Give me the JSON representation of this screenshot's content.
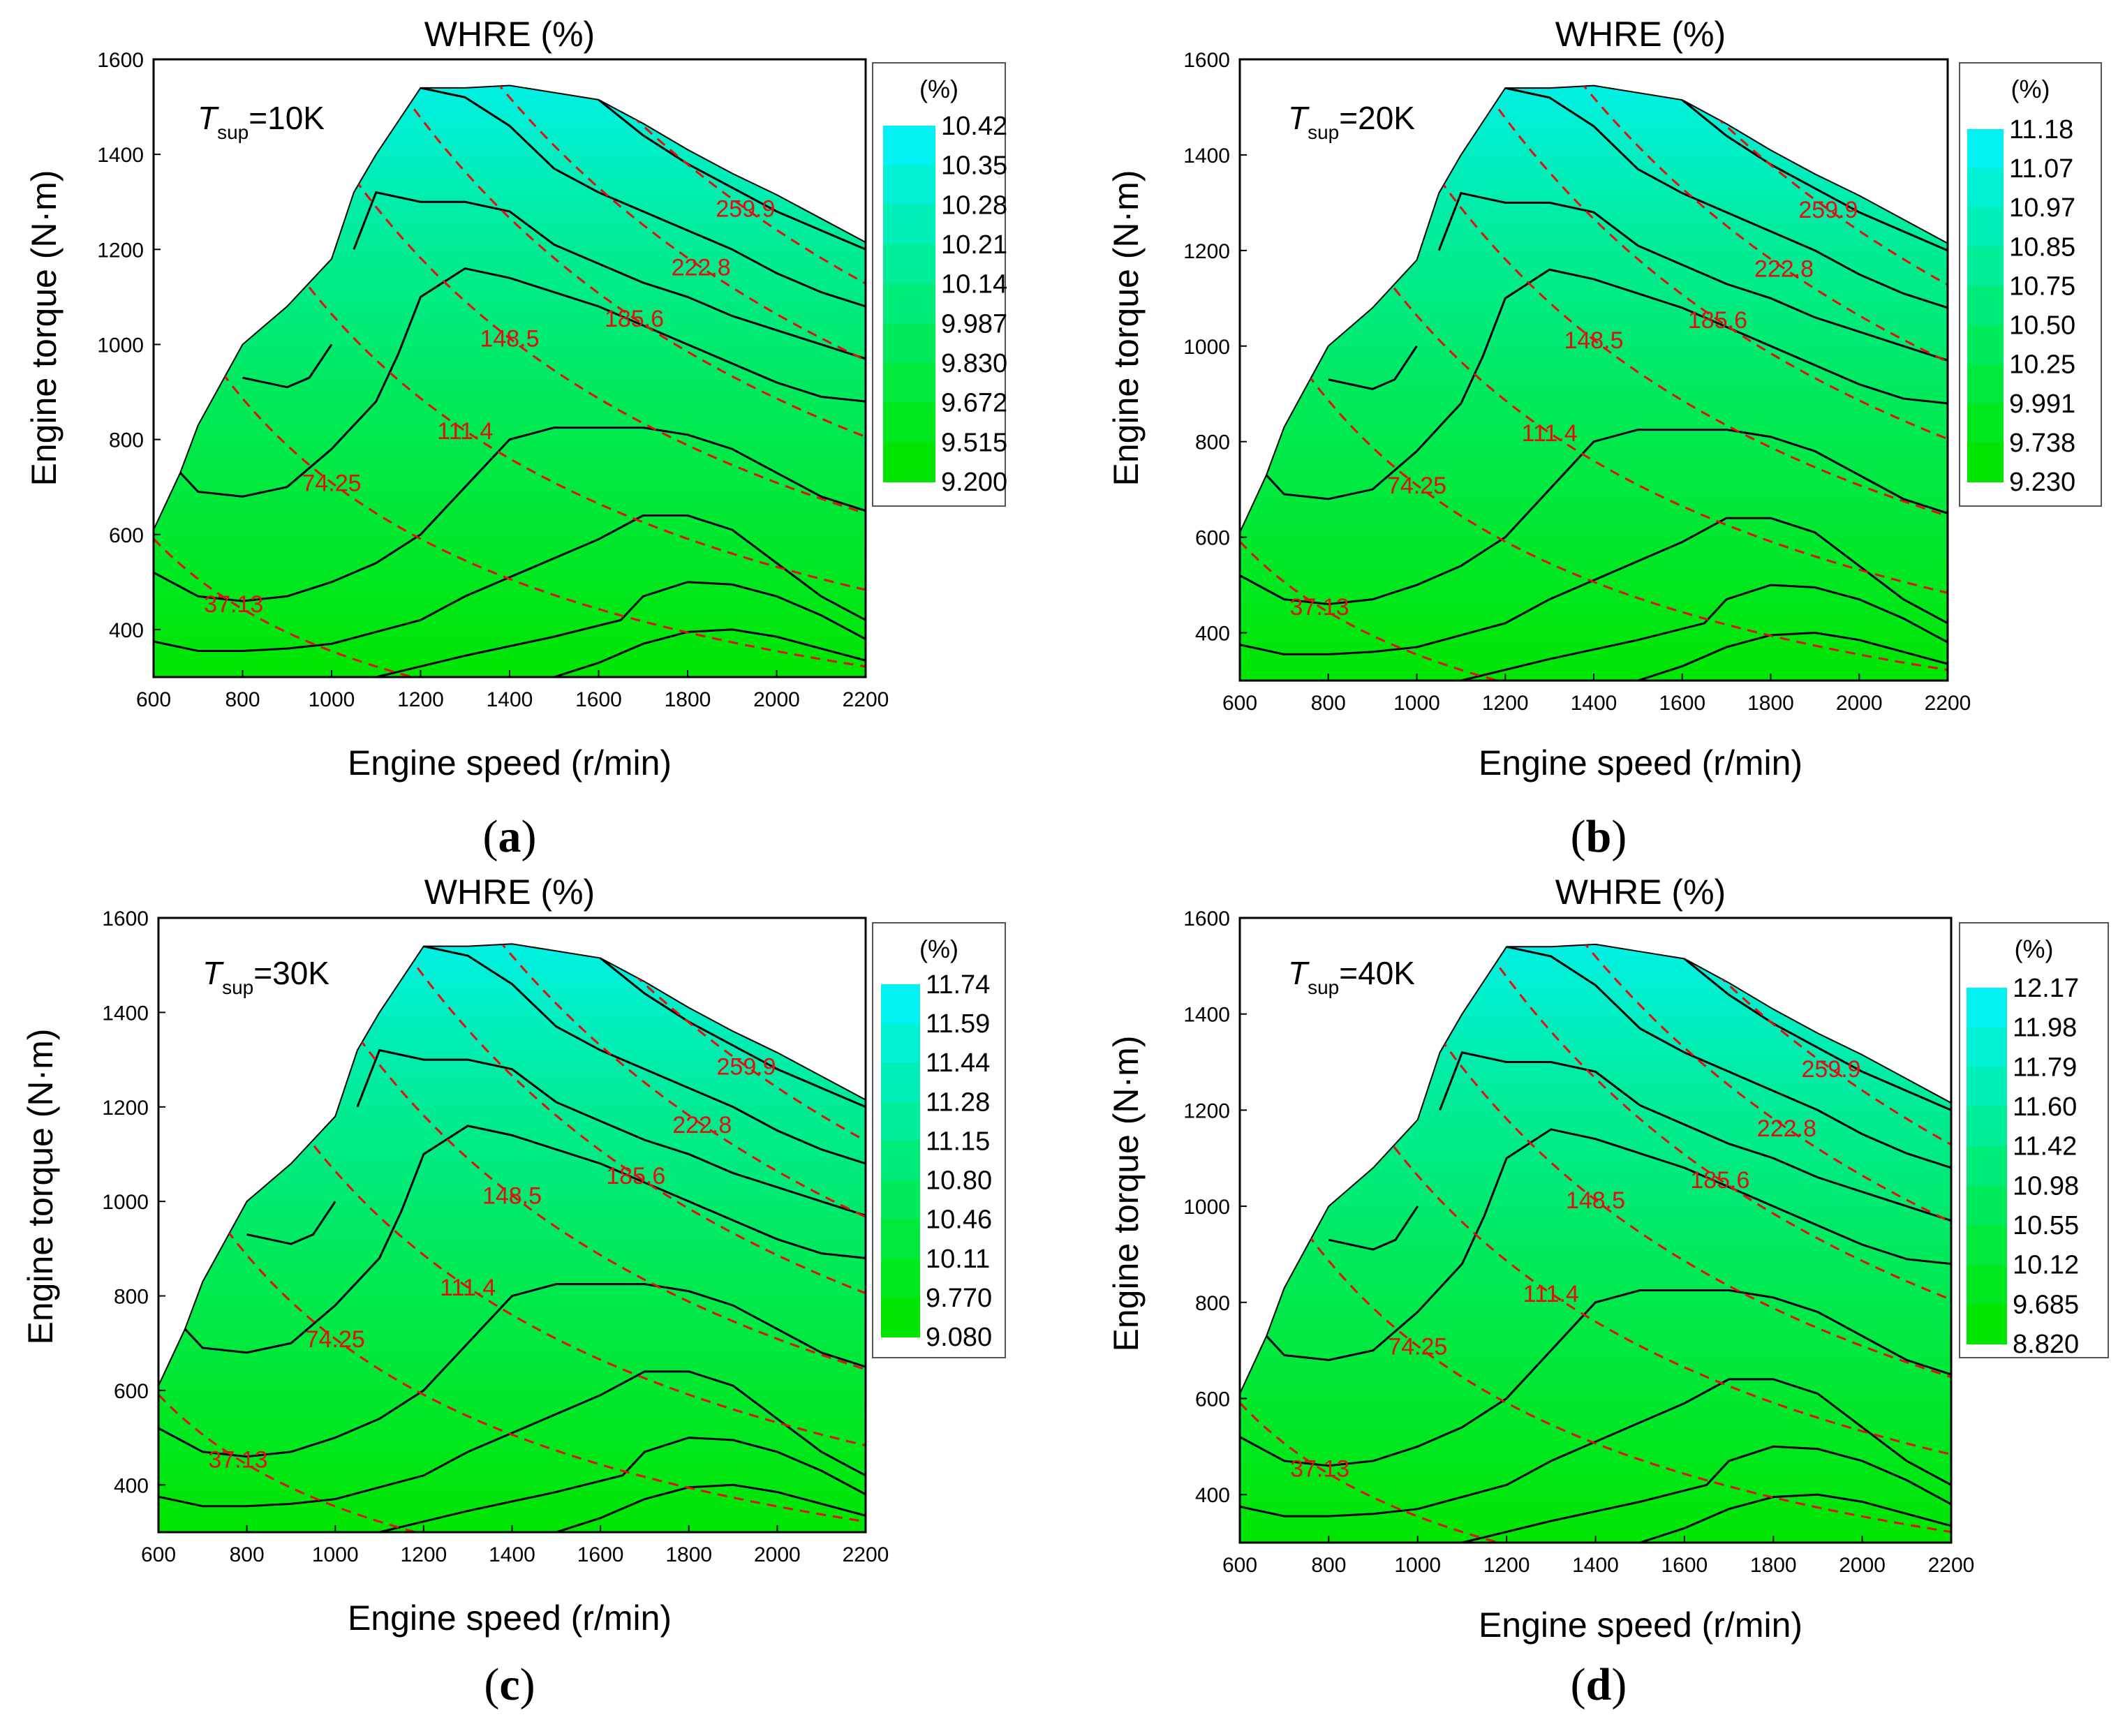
{
  "chart_data": [
    {
      "type": "contour",
      "title": "WHRE (%)",
      "xlabel": "Engine speed (r/min)",
      "ylabel": "Engine torque (N·m)",
      "xlim": [
        600,
        2200
      ],
      "ylim": [
        300,
        1600
      ],
      "xticks": [
        "600",
        "800",
        "1000",
        "1200",
        "1400",
        "1600",
        "1800",
        "2000",
        "2200"
      ],
      "yticks": [
        "400",
        "600",
        "800",
        "1000",
        "1200",
        "1400",
        "1600"
      ],
      "condition": {
        "symbol": "T",
        "subscript": "sup",
        "value": "=10K"
      },
      "colorbar": {
        "unit": "(%)",
        "levels": [
          "10.42",
          "10.35",
          "10.28",
          "10.21",
          "10.14",
          "9.987",
          "9.830",
          "9.672",
          "9.515",
          "9.200"
        ]
      },
      "power_lines": [
        "259.9",
        "222.8",
        "185.6",
        "148.5",
        "111.4",
        "74.25",
        "37.13"
      ],
      "panel_label": "a"
    },
    {
      "type": "contour",
      "title": "WHRE (%)",
      "xlabel": "Engine speed (r/min)",
      "ylabel": "Engine torque (N·m)",
      "xlim": [
        600,
        2200
      ],
      "ylim": [
        300,
        1600
      ],
      "xticks": [
        "600",
        "800",
        "1000",
        "1200",
        "1400",
        "1600",
        "1800",
        "2000",
        "2200"
      ],
      "yticks": [
        "400",
        "600",
        "800",
        "1000",
        "1200",
        "1400",
        "1600"
      ],
      "condition": {
        "symbol": "T",
        "subscript": "sup",
        "value": "=20K"
      },
      "colorbar": {
        "unit": "(%)",
        "levels": [
          "11.18",
          "11.07",
          "10.97",
          "10.85",
          "10.75",
          "10.50",
          "10.25",
          "9.991",
          "9.738",
          "9.230"
        ]
      },
      "power_lines": [
        "259.9",
        "222.8",
        "185.6",
        "148.5",
        "111.4",
        "74.25",
        "37.13"
      ],
      "panel_label": "b"
    },
    {
      "type": "contour",
      "title": "WHRE (%)",
      "xlabel": "Engine speed (r/min)",
      "ylabel": "Engine torque (N·m)",
      "xlim": [
        600,
        2200
      ],
      "ylim": [
        300,
        1600
      ],
      "xticks": [
        "600",
        "800",
        "1000",
        "1200",
        "1400",
        "1600",
        "1800",
        "2000",
        "2200"
      ],
      "yticks": [
        "400",
        "600",
        "800",
        "1000",
        "1200",
        "1400",
        "1600"
      ],
      "condition": {
        "symbol": "T",
        "subscript": "sup",
        "value": "=30K"
      },
      "colorbar": {
        "unit": "(%)",
        "levels": [
          "11.74",
          "11.59",
          "11.44",
          "11.28",
          "11.15",
          "10.80",
          "10.46",
          "10.11",
          "9.770",
          "9.080"
        ]
      },
      "power_lines": [
        "259.9",
        "222.8",
        "185.6",
        "148.5",
        "111.4",
        "74.25",
        "37.13"
      ],
      "panel_label": "c"
    },
    {
      "type": "contour",
      "title": "WHRE (%)",
      "xlabel": "Engine speed (r/min)",
      "ylabel": "Engine torque (N·m)",
      "xlim": [
        600,
        2200
      ],
      "ylim": [
        300,
        1600
      ],
      "xticks": [
        "600",
        "800",
        "1000",
        "1200",
        "1400",
        "1600",
        "1800",
        "2000",
        "2200"
      ],
      "yticks": [
        "400",
        "600",
        "800",
        "1000",
        "1200",
        "1400",
        "1600"
      ],
      "condition": {
        "symbol": "T",
        "subscript": "sup",
        "value": "=40K"
      },
      "colorbar": {
        "unit": "(%)",
        "levels": [
          "12.17",
          "11.98",
          "11.79",
          "11.60",
          "11.42",
          "10.98",
          "10.55",
          "10.12",
          "9.685",
          "8.820"
        ]
      },
      "power_lines": [
        "259.9",
        "222.8",
        "185.6",
        "148.5",
        "111.4",
        "74.25",
        "37.13"
      ],
      "panel_label": "d"
    }
  ],
  "envelope": {
    "speed": [
      600,
      660,
      700,
      800,
      900,
      1000,
      1050,
      1100,
      1150,
      1200,
      1300,
      1400,
      1500,
      1600,
      1700,
      1800,
      1900,
      2000,
      2100,
      2200
    ],
    "torque": [
      610,
      730,
      830,
      1000,
      1080,
      1180,
      1320,
      1400,
      1470,
      1540,
      1540,
      1545,
      1530,
      1515,
      1465,
      1410,
      1360,
      1315,
      1265,
      1215
    ]
  },
  "contour_lines": [
    {
      "speed": [
        600,
        700,
        800,
        900,
        1000,
        1100,
        1200,
        1300,
        1400,
        1500,
        1600,
        1700,
        1800,
        1900,
        2000,
        2100,
        2200
      ],
      "torque": [
        375,
        355,
        355,
        360,
        370,
        395,
        420,
        470,
        510,
        550,
        590,
        640,
        640,
        610,
        540,
        470,
        420
      ]
    },
    {
      "speed": [
        600,
        700,
        800,
        900,
        1000,
        1100,
        1200,
        1300,
        1400,
        1500,
        1600,
        1700,
        1800,
        1900,
        2000,
        2100,
        2200
      ],
      "torque": [
        520,
        470,
        460,
        470,
        500,
        540,
        600,
        700,
        800,
        825,
        825,
        825,
        810,
        780,
        730,
        680,
        650
      ]
    },
    {
      "speed": [
        660,
        700,
        800,
        900,
        1000,
        1100,
        1150,
        1200,
        1300,
        1400,
        1500,
        1600,
        1700,
        1800,
        1900,
        2000,
        2100,
        2200
      ],
      "torque": [
        730,
        690,
        680,
        700,
        780,
        880,
        980,
        1100,
        1160,
        1140,
        1110,
        1080,
        1040,
        1000,
        960,
        920,
        890,
        880
      ]
    },
    {
      "speed": [
        1050,
        1100,
        1200,
        1300,
        1400,
        1500,
        1600,
        1700,
        1800,
        1900,
        2000,
        2100,
        2200
      ],
      "torque": [
        1200,
        1320,
        1300,
        1300,
        1280,
        1210,
        1170,
        1130,
        1100,
        1060,
        1030,
        1000,
        970
      ]
    },
    {
      "speed": [
        1200,
        1300,
        1400,
        1500,
        1600,
        1700,
        1800,
        1900,
        2000,
        2100,
        2200
      ],
      "torque": [
        1540,
        1520,
        1460,
        1370,
        1320,
        1280,
        1240,
        1200,
        1150,
        1110,
        1080
      ]
    },
    {
      "speed": [
        1600,
        1700,
        1800,
        1900,
        2000,
        2100,
        2200
      ],
      "torque": [
        1515,
        1440,
        1380,
        1330,
        1280,
        1240,
        1200
      ]
    },
    {
      "speed": [
        800,
        900,
        950,
        1000
      ],
      "torque": [
        930,
        910,
        930,
        1000
      ]
    },
    {
      "speed": [
        1100,
        1300,
        1500,
        1650,
        1700,
        1800,
        1900,
        2000,
        2100,
        2200
      ],
      "torque": [
        300,
        345,
        385,
        420,
        470,
        500,
        495,
        470,
        430,
        380
      ]
    },
    {
      "speed": [
        1500,
        1600,
        1700,
        1800,
        1900,
        2000,
        2100,
        2200
      ],
      "torque": [
        300,
        330,
        370,
        395,
        400,
        385,
        360,
        335
      ]
    }
  ],
  "power_line_values": [
    259.9,
    222.8,
    185.6,
    148.5,
    111.4,
    74.25,
    37.13
  ],
  "colors": {
    "high": "#00f2f2",
    "mid": "#00ec96",
    "low": "#00e600",
    "contour": "#000000",
    "power_line": "#e01010"
  }
}
